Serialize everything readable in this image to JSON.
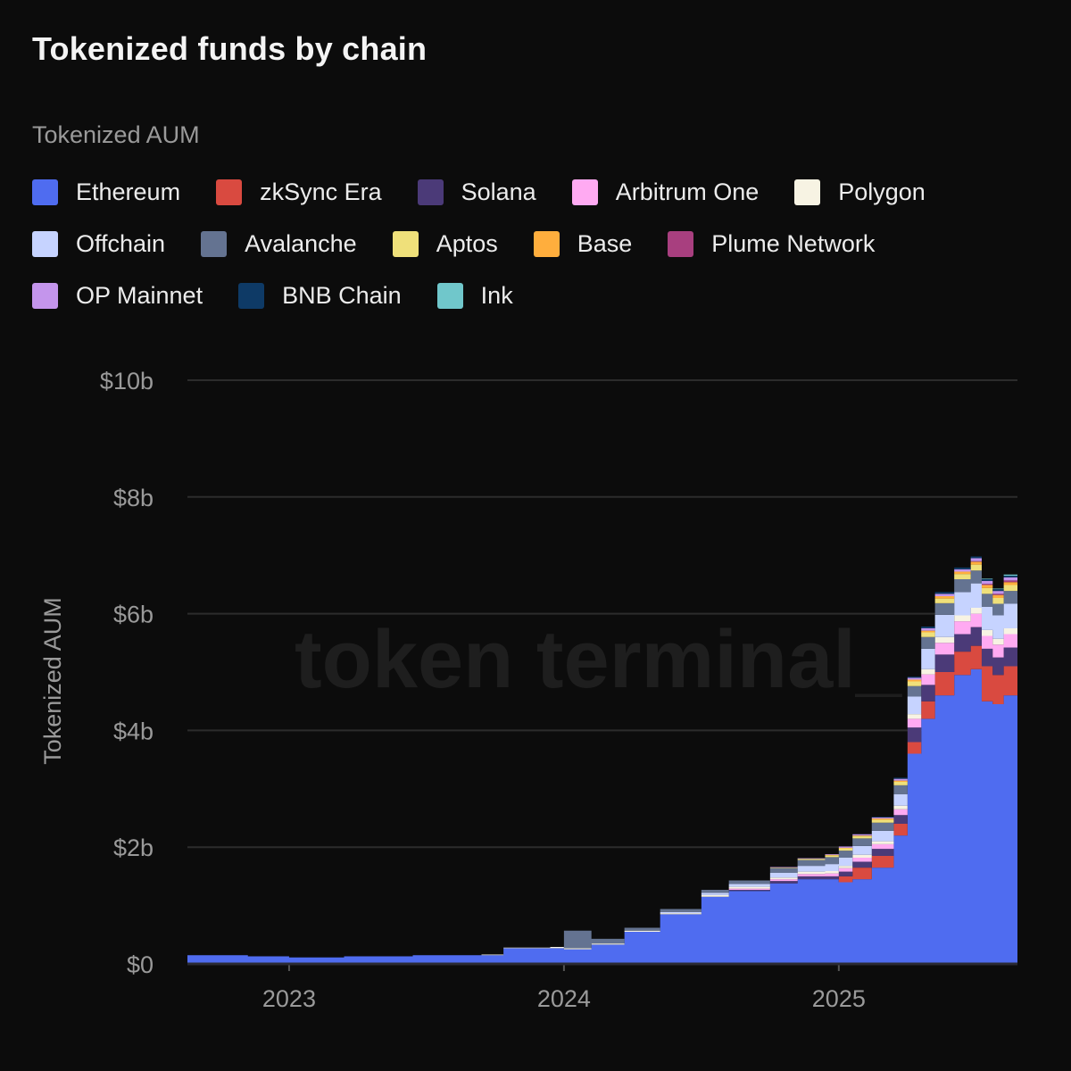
{
  "header": {
    "title": "Tokenized funds by chain"
  },
  "legend": {
    "title": "Tokenized AUM",
    "rows": [
      [
        {
          "label": "Ethereum",
          "color": "#4f6cf0"
        },
        {
          "label": "zkSync Era",
          "color": "#d94a40"
        },
        {
          "label": "Solana",
          "color": "#4b3a78"
        },
        {
          "label": "Arbitrum One",
          "color": "#ffaaf2"
        },
        {
          "label": "Polygon",
          "color": "#f7f3e3"
        }
      ],
      [
        {
          "label": "Offchain",
          "color": "#c6d3ff"
        },
        {
          "label": "Avalanche",
          "color": "#647391"
        },
        {
          "label": "Aptos",
          "color": "#efe07a"
        },
        {
          "label": "Base",
          "color": "#ffae3d"
        },
        {
          "label": "Plume Network",
          "color": "#a83f7f"
        }
      ],
      [
        {
          "label": "OP Mainnet",
          "color": "#c495ec"
        },
        {
          "label": "BNB Chain",
          "color": "#0e3a66"
        },
        {
          "label": "Ink",
          "color": "#70c7cb"
        }
      ]
    ]
  },
  "watermark": "token terminal_",
  "chart_data": {
    "type": "area",
    "stacked": true,
    "ylabel": "Tokenized AUM",
    "y_ticks": [
      "$0",
      "$2b",
      "$4b",
      "$6b",
      "$8b",
      "$10b"
    ],
    "x_ticks": [
      "2023",
      "2024",
      "2025"
    ],
    "ylim": [
      0,
      10
    ],
    "xlim": [
      2022.63,
      2025.65
    ],
    "grid": true,
    "legend_position": "top-left",
    "x": [
      2022.63,
      2022.85,
      2023.0,
      2023.2,
      2023.45,
      2023.7,
      2023.78,
      2023.95,
      2024.0,
      2024.1,
      2024.22,
      2024.35,
      2024.5,
      2024.6,
      2024.75,
      2024.85,
      2024.95,
      2025.0,
      2025.05,
      2025.12,
      2025.2,
      2025.25,
      2025.3,
      2025.35,
      2025.42,
      2025.48,
      2025.52,
      2025.56,
      2025.6,
      2025.65
    ],
    "series": [
      {
        "name": "Ethereum",
        "values": [
          0.15,
          0.13,
          0.11,
          0.13,
          0.15,
          0.15,
          0.27,
          0.27,
          0.25,
          0.33,
          0.55,
          0.85,
          1.15,
          1.25,
          1.38,
          1.45,
          1.45,
          1.4,
          1.45,
          1.65,
          2.2,
          3.6,
          4.2,
          4.6,
          4.95,
          5.05,
          4.5,
          4.45,
          4.6,
          4.9
        ]
      },
      {
        "name": "zkSync Era",
        "values": [
          0,
          0,
          0,
          0,
          0,
          0,
          0,
          0,
          0,
          0,
          0,
          0,
          0,
          0,
          0,
          0,
          0,
          0.1,
          0.2,
          0.2,
          0.2,
          0.2,
          0.3,
          0.4,
          0.4,
          0.4,
          0.6,
          0.5,
          0.5,
          1.1
        ]
      },
      {
        "name": "Solana",
        "values": [
          0,
          0,
          0,
          0,
          0,
          0,
          0,
          0,
          0,
          0,
          0,
          0,
          0,
          0.02,
          0.04,
          0.05,
          0.05,
          0.08,
          0.1,
          0.12,
          0.15,
          0.25,
          0.28,
          0.3,
          0.3,
          0.32,
          0.3,
          0.3,
          0.32,
          0.35
        ]
      },
      {
        "name": "Arbitrum One",
        "values": [
          0,
          0,
          0,
          0,
          0,
          0,
          0,
          0,
          0,
          0,
          0,
          0,
          0,
          0.02,
          0.03,
          0.04,
          0.05,
          0.06,
          0.07,
          0.08,
          0.1,
          0.15,
          0.18,
          0.2,
          0.22,
          0.23,
          0.22,
          0.22,
          0.23,
          0.25
        ]
      },
      {
        "name": "Polygon",
        "values": [
          0,
          0,
          0,
          0,
          0,
          0.01,
          0.01,
          0.02,
          0.02,
          0.02,
          0.02,
          0.02,
          0.03,
          0.03,
          0.03,
          0.04,
          0.04,
          0.04,
          0.05,
          0.05,
          0.06,
          0.08,
          0.09,
          0.1,
          0.1,
          0.1,
          0.1,
          0.1,
          0.1,
          0.1
        ]
      },
      {
        "name": "Offchain",
        "values": [
          0,
          0,
          0,
          0,
          0,
          0,
          0,
          0,
          0,
          0,
          0,
          0.02,
          0.04,
          0.05,
          0.08,
          0.1,
          0.12,
          0.14,
          0.15,
          0.18,
          0.2,
          0.3,
          0.35,
          0.38,
          0.4,
          0.42,
          0.4,
          0.4,
          0.42,
          0.45
        ]
      },
      {
        "name": "Avalanche",
        "values": [
          0,
          0,
          0,
          0,
          0,
          0,
          0,
          0,
          0.3,
          0.08,
          0.05,
          0.05,
          0.05,
          0.06,
          0.08,
          0.1,
          0.12,
          0.12,
          0.13,
          0.14,
          0.15,
          0.18,
          0.2,
          0.2,
          0.22,
          0.22,
          0.22,
          0.2,
          0.22,
          0.25
        ]
      },
      {
        "name": "Aptos",
        "values": [
          0,
          0,
          0,
          0,
          0,
          0,
          0,
          0,
          0,
          0,
          0,
          0,
          0,
          0,
          0.01,
          0.02,
          0.03,
          0.04,
          0.04,
          0.05,
          0.06,
          0.08,
          0.08,
          0.08,
          0.09,
          0.1,
          0.1,
          0.1,
          0.1,
          0.1
        ]
      },
      {
        "name": "Base",
        "values": [
          0,
          0,
          0,
          0,
          0,
          0,
          0,
          0,
          0,
          0,
          0,
          0,
          0,
          0,
          0,
          0,
          0.01,
          0.01,
          0.01,
          0.02,
          0.02,
          0.03,
          0.03,
          0.04,
          0.04,
          0.05,
          0.05,
          0.05,
          0.05,
          0.05
        ]
      },
      {
        "name": "Plume Network",
        "values": [
          0,
          0,
          0,
          0,
          0,
          0,
          0,
          0,
          0,
          0,
          0,
          0,
          0,
          0,
          0,
          0,
          0,
          0,
          0,
          0,
          0,
          0,
          0,
          0,
          0,
          0.01,
          0.02,
          0.02,
          0.03,
          0.04
        ]
      },
      {
        "name": "OP Mainnet",
        "values": [
          0,
          0,
          0,
          0,
          0,
          0,
          0,
          0,
          0,
          0,
          0,
          0,
          0,
          0,
          0.01,
          0.01,
          0.01,
          0.02,
          0.02,
          0.02,
          0.03,
          0.03,
          0.04,
          0.04,
          0.04,
          0.05,
          0.05,
          0.05,
          0.05,
          0.05
        ]
      },
      {
        "name": "BNB Chain",
        "values": [
          0,
          0,
          0,
          0,
          0,
          0,
          0,
          0,
          0,
          0,
          0,
          0,
          0,
          0,
          0,
          0,
          0,
          0,
          0,
          0.01,
          0.02,
          0.02,
          0.03,
          0.03,
          0.03,
          0.03,
          0.03,
          0.03,
          0.03,
          0.03
        ]
      },
      {
        "name": "Ink",
        "values": [
          0,
          0,
          0,
          0,
          0,
          0,
          0,
          0,
          0,
          0,
          0,
          0,
          0,
          0,
          0,
          0,
          0,
          0,
          0,
          0,
          0,
          0,
          0,
          0,
          0,
          0,
          0.01,
          0.01,
          0.02,
          0.02
        ]
      }
    ]
  }
}
